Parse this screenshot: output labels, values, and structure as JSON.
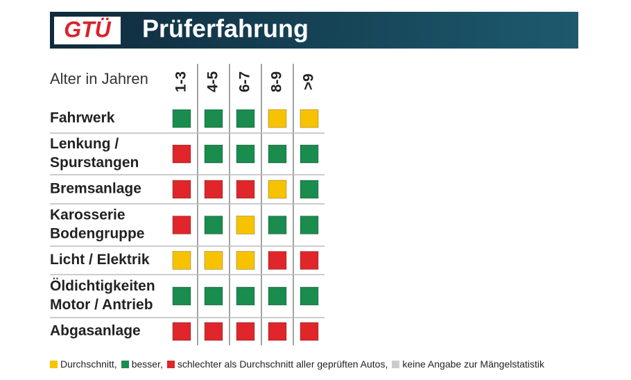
{
  "header": {
    "logo": "GTÜ",
    "title": "Prüferfahrung"
  },
  "table": {
    "column_header": "Alter in Jahren",
    "columns": [
      "1-3",
      "4-5",
      "6-7",
      "8-9",
      ">9"
    ],
    "rows": [
      {
        "label": [
          "Fahrwerk"
        ],
        "cells": [
          "#1a8c4e",
          "#1a8c4e",
          "#1a8c4e",
          "#f7c300",
          "#f7c300"
        ]
      },
      {
        "label": [
          "Lenkung /",
          "Spurstangen"
        ],
        "cells": [
          "#e0262a",
          "#1a8c4e",
          "#1a8c4e",
          "#1a8c4e",
          "#1a8c4e"
        ]
      },
      {
        "label": [
          "Bremsanlage"
        ],
        "cells": [
          "#e0262a",
          "#e0262a",
          "#e0262a",
          "#f7c300",
          "#1a8c4e"
        ]
      },
      {
        "label": [
          "Karosserie",
          "Bodengruppe"
        ],
        "cells": [
          "#e0262a",
          "#1a8c4e",
          "#f7c300",
          "#1a8c4e",
          "#1a8c4e"
        ]
      },
      {
        "label": [
          "Licht / Elektrik"
        ],
        "cells": [
          "#f7c300",
          "#f7c300",
          "#f7c300",
          "#e0262a",
          "#e0262a"
        ]
      },
      {
        "label": [
          "Öldichtigkeiten",
          "Motor / Antrieb"
        ],
        "cells": [
          "#1a8c4e",
          "#1a8c4e",
          "#1a8c4e",
          "#1a8c4e",
          "#1a8c4e"
        ]
      },
      {
        "label": [
          "Abgasanlage"
        ],
        "cells": [
          "#e0262a",
          "#e0262a",
          "#e0262a",
          "#e0262a",
          "#e0262a"
        ]
      }
    ]
  },
  "legend": [
    {
      "color": "#f7c300",
      "label": "Durchschnitt,"
    },
    {
      "color": "#1a8c4e",
      "label": "besser,"
    },
    {
      "color": "#e0262a",
      "label": "schlechter als Durchschnitt aller geprüften Autos,"
    },
    {
      "color": "#cccccc",
      "label": "keine Angabe zur Mängelstatistik"
    }
  ]
}
